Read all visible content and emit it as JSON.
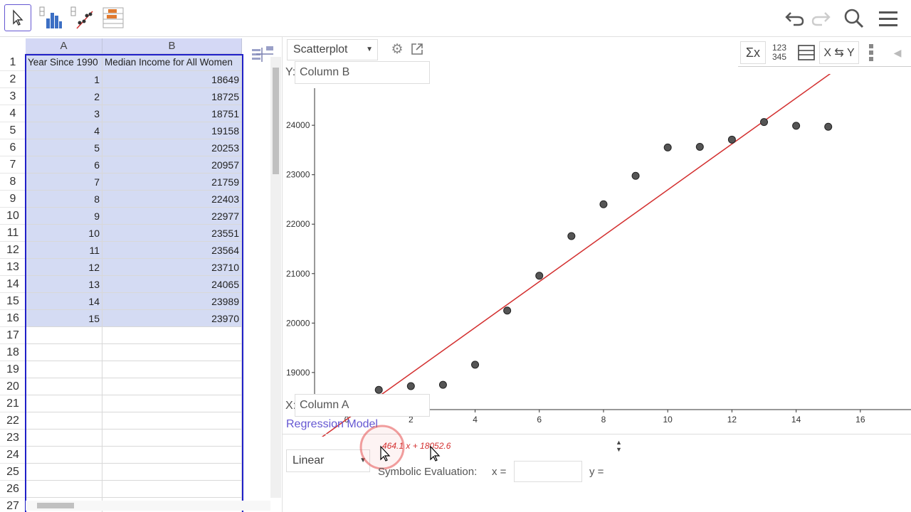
{
  "toolbar": {
    "tools": [
      "move-tool",
      "one-variable-analysis-tool",
      "two-variable-regression-tool",
      "multiple-variable-analysis-tool"
    ],
    "right": [
      "undo-icon",
      "redo-icon",
      "search-icon",
      "menu-icon"
    ]
  },
  "sheet": {
    "col_a": "A",
    "col_b": "B",
    "row_numbers": [
      "1",
      "2",
      "3",
      "4",
      "5",
      "6",
      "7",
      "8",
      "9",
      "10",
      "11",
      "12",
      "13",
      "14",
      "15",
      "16",
      "17",
      "18",
      "19",
      "20",
      "21",
      "22",
      "23",
      "24",
      "25",
      "26",
      "27"
    ],
    "header_a": "Year Since 1990",
    "header_b": "Median Income for All Women",
    "col_a_values": [
      "1",
      "2",
      "3",
      "4",
      "5",
      "6",
      "7",
      "8",
      "9",
      "10",
      "11",
      "12",
      "13",
      "14",
      "15"
    ],
    "col_b_values": [
      "18649",
      "18725",
      "18751",
      "19158",
      "20253",
      "20957",
      "21759",
      "22403",
      "22977",
      "23551",
      "23564",
      "23710",
      "24065",
      "23989",
      "23970"
    ]
  },
  "panel": {
    "plot_type": "Scatterplot",
    "y_label": "Y:",
    "y_value": "Column B",
    "x_label": "X:",
    "x_value": "Column A",
    "regression_model_label": "Regression Model",
    "regression_type": "Linear",
    "equation": "464.1 x + 18052.6",
    "symbolic_label": "Symbolic Evaluation:",
    "x_eq": "x =",
    "y_eq": "y =",
    "stats_tools": {
      "sigma": "Σx",
      "data_top": "123",
      "data_bottom": "345",
      "swap": "X ⇆ Y"
    }
  },
  "colors": {
    "selection": "#d4dbf3",
    "selection_border": "#2020c8",
    "regression_line": "#d32f2f",
    "accent": "#6557d2"
  },
  "chart_data": {
    "type": "scatter",
    "title": "",
    "xlabel": "",
    "ylabel": "",
    "xlim": [
      -1,
      17.6
    ],
    "ylim": [
      18250,
      24750
    ],
    "x_ticks": [
      0,
      2,
      4,
      6,
      8,
      10,
      12,
      14,
      16
    ],
    "y_ticks": [
      19000,
      20000,
      21000,
      22000,
      23000,
      24000
    ],
    "points": [
      [
        1,
        18649
      ],
      [
        2,
        18725
      ],
      [
        3,
        18751
      ],
      [
        4,
        19158
      ],
      [
        5,
        20253
      ],
      [
        6,
        20957
      ],
      [
        7,
        21759
      ],
      [
        8,
        22403
      ],
      [
        9,
        22977
      ],
      [
        10,
        23551
      ],
      [
        11,
        23564
      ],
      [
        12,
        23710
      ],
      [
        13,
        24065
      ],
      [
        14,
        23989
      ],
      [
        15,
        23970
      ]
    ],
    "regression": {
      "slope": 464.1,
      "intercept": 18052.6,
      "x_from": -1,
      "x_to": 15.3
    },
    "grid": false
  }
}
